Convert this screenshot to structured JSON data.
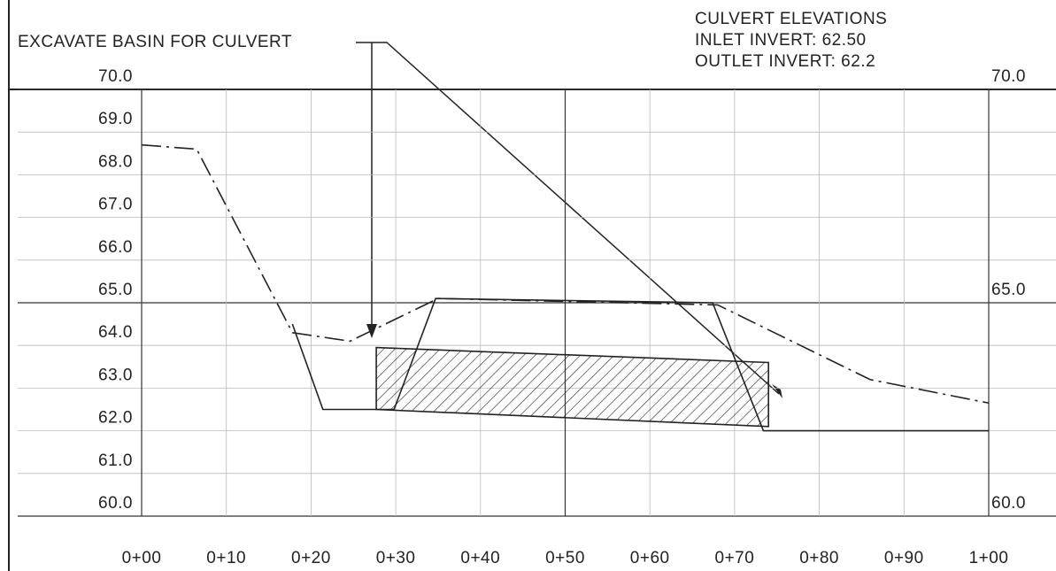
{
  "chart_data": {
    "type": "line",
    "annotations": [
      "EXCAVATE BASIN FOR CULVERT",
      "CULVERT ELEVATIONS",
      "INLET INVERT: 62.50",
      "OUTLET INVERT: 62.2"
    ],
    "xlim": [
      0,
      100
    ],
    "xticks": [
      {
        "value": 0,
        "label": "0+00"
      },
      {
        "value": 10,
        "label": "0+10"
      },
      {
        "value": 20,
        "label": "0+20"
      },
      {
        "value": 30,
        "label": "0+30"
      },
      {
        "value": 40,
        "label": "0+40"
      },
      {
        "value": 50,
        "label": "0+50"
      },
      {
        "value": 60,
        "label": "0+60"
      },
      {
        "value": 70,
        "label": "0+70"
      },
      {
        "value": 80,
        "label": "0+80"
      },
      {
        "value": 90,
        "label": "0+90"
      },
      {
        "value": 100,
        "label": "1+00"
      }
    ],
    "ylim": [
      60,
      70
    ],
    "yticks": [
      {
        "value": 60,
        "label": "60.0"
      },
      {
        "value": 61,
        "label": "61.0"
      },
      {
        "value": 62,
        "label": "62.0"
      },
      {
        "value": 63,
        "label": "63.0"
      },
      {
        "value": 64,
        "label": "64.0"
      },
      {
        "value": 65,
        "label": "65.0"
      },
      {
        "value": 66,
        "label": "66.0"
      },
      {
        "value": 67,
        "label": "67.0"
      },
      {
        "value": 68,
        "label": "68.0"
      },
      {
        "value": 69,
        "label": "69.0"
      },
      {
        "value": 70,
        "label": "70.0"
      }
    ],
    "y2lim": [
      60,
      70
    ],
    "y2ticks": [
      {
        "value": 60,
        "label": "60.0"
      },
      {
        "value": 65,
        "label": "65.0"
      },
      {
        "value": 70,
        "label": "70.0"
      }
    ],
    "grid": true,
    "series": [
      {
        "color": "#222222",
        "dash": "dashdot",
        "x": [
          0,
          6.5,
          17.8,
          24.6,
          35,
          68,
          86,
          100
        ],
        "values": [
          68.7,
          68.6,
          64.3,
          64.1,
          65.1,
          64.95,
          63.2,
          62.65
        ]
      },
      {
        "color": "#222222",
        "dash": "solid",
        "x": [
          17.8,
          21.4,
          29.8,
          34.7,
          67.4,
          73.4,
          100
        ],
        "values": [
          64.5,
          62.5,
          62.5,
          65.1,
          65.0,
          62.0,
          62.0
        ]
      },
      {
        "color": "#222222",
        "dash": "solid",
        "fill": "hatch",
        "x": [
          27.7,
          74.0,
          74.0,
          27.7
        ],
        "values": [
          63.95,
          63.6,
          62.1,
          62.5
        ]
      }
    ]
  }
}
